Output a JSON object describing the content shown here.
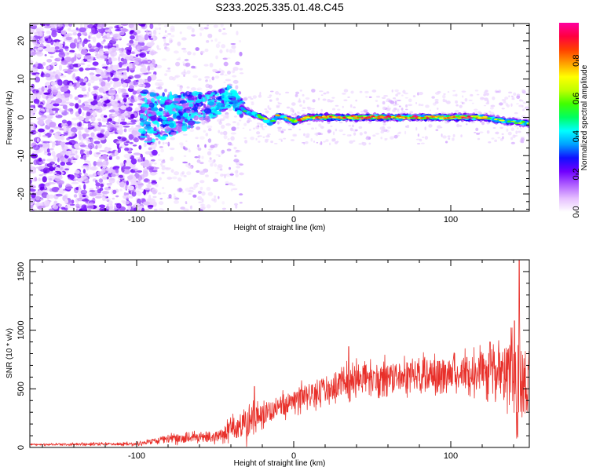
{
  "title": "S233.2025.335.01.48.C45",
  "chart_data": [
    {
      "type": "heatmap",
      "name": "spectrogram",
      "xlabel": "Height of straight line (km)",
      "ylabel": "Frequency (Hz)",
      "xlim": [
        -168,
        150
      ],
      "ylim": [
        -24.5,
        24.5
      ],
      "x_ticks": [
        -100,
        0,
        100
      ],
      "x_tick_labels": [
        "-100",
        "0",
        "100"
      ],
      "y_ticks": [
        -20,
        -10,
        0,
        10,
        20
      ],
      "y_tick_labels": [
        "-20",
        "-10",
        "0",
        "10",
        "20"
      ],
      "signal_ridge": [
        {
          "x": -95,
          "y": 0
        },
        {
          "x": -80,
          "y": 0.5
        },
        {
          "x": -65,
          "y": 2
        },
        {
          "x": -50,
          "y": 3.5
        },
        {
          "x": -40,
          "y": 5.5
        },
        {
          "x": -35,
          "y": 3
        },
        {
          "x": -30,
          "y": 1.5
        },
        {
          "x": -20,
          "y": 0
        },
        {
          "x": -15,
          "y": -1.5
        },
        {
          "x": -10,
          "y": 0.5
        },
        {
          "x": 0,
          "y": -1
        },
        {
          "x": 10,
          "y": 0
        },
        {
          "x": 60,
          "y": 0
        },
        {
          "x": 120,
          "y": 0
        },
        {
          "x": 135,
          "y": -1
        },
        {
          "x": 150,
          "y": -1.5
        }
      ],
      "colorbar": {
        "label": "Normalized spectral amplitude",
        "range": [
          0,
          1
        ],
        "ticks": [
          0.0,
          0.2,
          0.4,
          0.6,
          0.8
        ],
        "tick_labels": [
          "0.0",
          "0.2",
          "0.4",
          "0.6",
          "0.8"
        ],
        "colors": [
          "#ffffff",
          "#e6bfff",
          "#b060ff",
          "#7000ff",
          "#1010ff",
          "#00a0ff",
          "#00ffff",
          "#00ff60",
          "#40ff00",
          "#c0ff00",
          "#ffff00",
          "#ffa000",
          "#ff4000",
          "#ff0040",
          "#ff00a0"
        ]
      }
    },
    {
      "type": "line",
      "name": "snr",
      "xlabel": "Height of straight line (km)",
      "ylabel": "SNR (10 * v/v)",
      "xlim": [
        -168,
        150
      ],
      "ylim": [
        0,
        1600
      ],
      "x_ticks": [
        -100,
        0,
        100
      ],
      "x_tick_labels": [
        "-100",
        "0",
        "100"
      ],
      "y_ticks": [
        0,
        500,
        1000,
        1500
      ],
      "y_tick_labels": [
        "0",
        "500",
        "1000",
        "1500"
      ],
      "color": "#e8302a",
      "envelope": [
        {
          "x": -168,
          "mean": 25,
          "spread": 10
        },
        {
          "x": -100,
          "mean": 30,
          "spread": 15
        },
        {
          "x": -80,
          "mean": 70,
          "spread": 40
        },
        {
          "x": -50,
          "mean": 90,
          "spread": 50
        },
        {
          "x": -30,
          "mean": 200,
          "spread": 150
        },
        {
          "x": -20,
          "mean": 280,
          "spread": 100
        },
        {
          "x": 0,
          "mean": 400,
          "spread": 120
        },
        {
          "x": 20,
          "mean": 500,
          "spread": 130
        },
        {
          "x": 40,
          "mean": 580,
          "spread": 150
        },
        {
          "x": 80,
          "mean": 620,
          "spread": 150
        },
        {
          "x": 110,
          "mean": 640,
          "spread": 170
        },
        {
          "x": 130,
          "mean": 650,
          "spread": 220
        },
        {
          "x": 140,
          "mean": 600,
          "spread": 400
        },
        {
          "x": 150,
          "mean": 550,
          "spread": 350
        }
      ],
      "peaks": [
        {
          "x": 143.5,
          "y": 1600
        },
        {
          "x": 140.5,
          "y": 1080
        },
        {
          "x": 125,
          "y": 900
        },
        {
          "x": 35,
          "y": 860
        },
        {
          "x": -25,
          "y": 520
        }
      ]
    }
  ]
}
